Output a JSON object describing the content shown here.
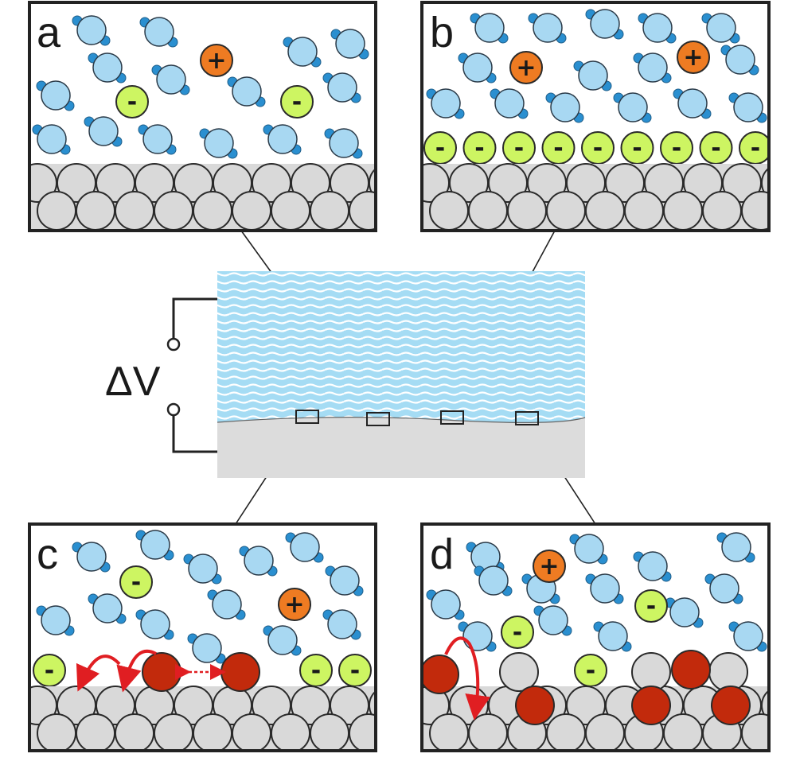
{
  "panels": {
    "a": {
      "label": "a"
    },
    "b": {
      "label": "b"
    },
    "c": {
      "label": "c"
    },
    "d": {
      "label": "d"
    }
  },
  "voltage_label": "ΔV",
  "ion_signs": {
    "cation": "+",
    "anion": "-"
  },
  "colors": {
    "water": "#a8d8f2",
    "water_h": "#2a8fd0",
    "cation": "#ee7b22",
    "anion": "#cdf562",
    "metal_atom": "#d9d9d9",
    "dissolved_atom": "#c22a0c",
    "arrow": "#e01e22",
    "electrolyte": "#a5dcf4",
    "electrode": "#dcdcdc",
    "frame": "#222222"
  }
}
